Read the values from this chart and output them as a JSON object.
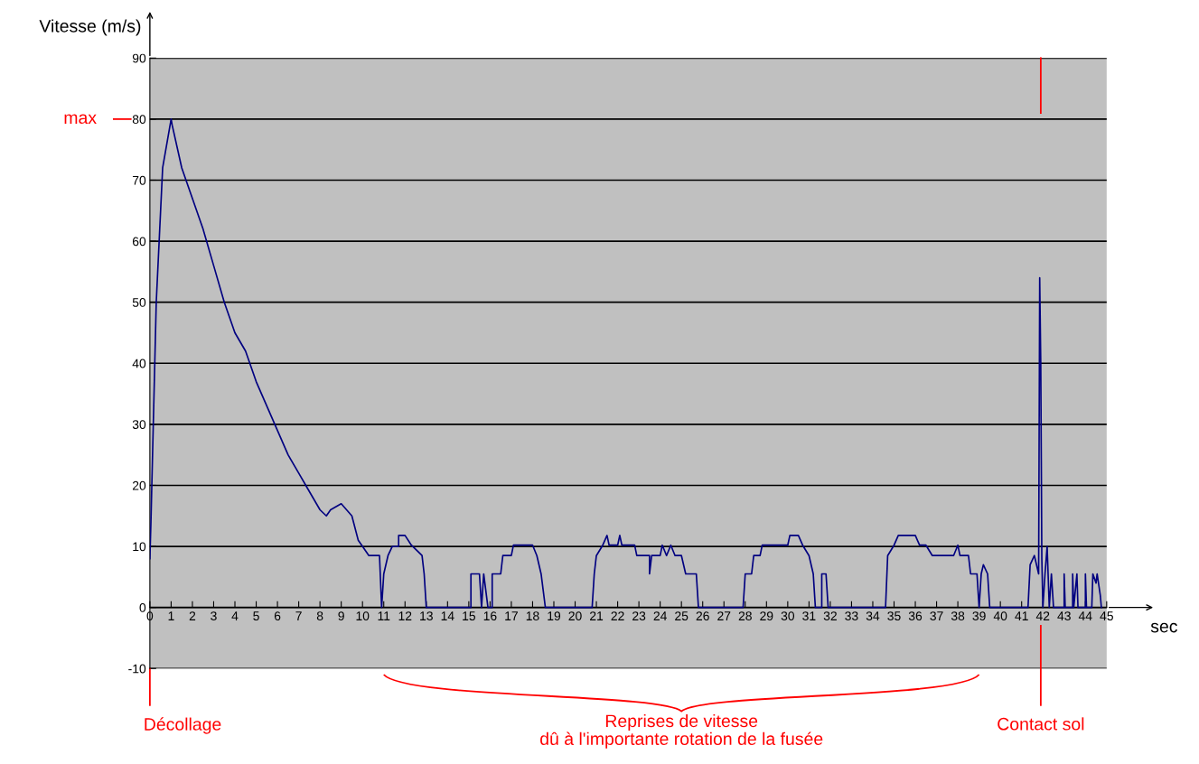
{
  "chart_data": {
    "type": "line",
    "ylabel": "Vitesse (m/s)",
    "xlabel": "sec",
    "xlim": [
      0,
      45
    ],
    "ylim": [
      -10,
      90
    ],
    "xticks": [
      0,
      1,
      2,
      3,
      4,
      5,
      6,
      7,
      8,
      9,
      10,
      11,
      12,
      13,
      14,
      15,
      16,
      17,
      18,
      19,
      20,
      21,
      22,
      23,
      24,
      25,
      26,
      27,
      28,
      29,
      30,
      31,
      32,
      33,
      34,
      35,
      36,
      37,
      38,
      39,
      40,
      41,
      42,
      43,
      44,
      45
    ],
    "yticks": [
      -10,
      0,
      10,
      20,
      30,
      40,
      50,
      60,
      70,
      80,
      90
    ],
    "grid": "y",
    "line_style": "solid",
    "marker": "none",
    "series": [
      {
        "color": "#000080",
        "x": [
          0,
          0.05,
          0.3,
          0.6,
          1.0,
          1.05,
          1.5,
          2,
          2.5,
          3,
          3.5,
          4,
          4.5,
          5,
          5.5,
          6,
          6.5,
          7,
          7.5,
          8,
          8.3,
          8.5,
          9,
          9.5,
          9.8,
          10,
          10.3,
          10.8,
          10.9,
          11,
          11.2,
          11.4,
          11.7,
          11.7,
          12,
          12.3,
          12.8,
          12.9,
          13,
          15.1,
          15.1,
          15.5,
          15.6,
          15.7,
          15.9,
          16.1,
          16.1,
          16.5,
          16.6,
          17,
          17.1,
          18,
          18.2,
          18.4,
          18.6,
          20.8,
          20.9,
          21,
          21.3,
          21.5,
          21.6,
          22,
          22.1,
          22.2,
          22.8,
          22.9,
          23.5,
          23.5,
          23.6,
          24,
          24.1,
          24.3,
          24.5,
          24.7,
          25,
          25.2,
          25.7,
          25.8,
          27.9,
          28,
          28.3,
          28.4,
          28.7,
          28.8,
          29.5,
          30,
          30.1,
          30.5,
          30.7,
          31,
          31.2,
          31.3,
          31.6,
          31.6,
          31.8,
          31.9,
          34.6,
          34.7,
          35,
          35.2,
          36,
          36.2,
          36.5,
          36.8,
          37.8,
          38,
          38.1,
          38.5,
          38.6,
          38.9,
          39,
          39.1,
          39.2,
          39.4,
          39.5,
          41.3,
          41.4,
          41.6,
          41.8,
          41.85,
          41.9,
          41.95,
          42,
          42.1,
          42.2,
          42.3,
          42.4,
          42.5,
          43,
          43,
          43.05,
          43.4,
          43.4,
          43.45,
          43.6,
          43.65,
          44,
          44,
          44.05,
          44.3,
          44.35,
          44.5,
          44.55,
          44.7,
          44.75
        ],
        "values": [
          8,
          14,
          50,
          72,
          80,
          79,
          72,
          67,
          62,
          56,
          50,
          45,
          42,
          37,
          33,
          29,
          25,
          22,
          19,
          16,
          15,
          16,
          17,
          15,
          11,
          10,
          8.5,
          8.5,
          0,
          5.5,
          8.5,
          10,
          10,
          11.8,
          11.8,
          10.2,
          8.5,
          5.5,
          0,
          0,
          5.5,
          5.5,
          0,
          5.5,
          0,
          0,
          5.5,
          5.5,
          8.5,
          8.5,
          10.2,
          10.2,
          8.5,
          5.5,
          0,
          0,
          5.5,
          8.5,
          10.2,
          11.8,
          10.2,
          10.2,
          11.8,
          10.2,
          10.2,
          8.5,
          8.5,
          5.5,
          8.5,
          8.5,
          10.2,
          8.5,
          10.2,
          8.5,
          8.5,
          5.5,
          5.5,
          0,
          0,
          5.5,
          5.5,
          8.5,
          8.5,
          10.2,
          10.2,
          10.2,
          11.8,
          11.8,
          10.2,
          8.5,
          5.5,
          0,
          0,
          5.5,
          5.5,
          0,
          0,
          8.5,
          10.2,
          11.8,
          11.8,
          10.2,
          10.2,
          8.5,
          8.5,
          10.2,
          8.5,
          8.5,
          5.5,
          5.5,
          0,
          5.5,
          7,
          5.5,
          0,
          0,
          7,
          8.5,
          5.5,
          54,
          40,
          8,
          0,
          5.5,
          10,
          0,
          5.5,
          0,
          0,
          5.5,
          0,
          0,
          5.5,
          0,
          5.5,
          0,
          0,
          5.5,
          0,
          0,
          5.5,
          4,
          5.5,
          2,
          0
        ]
      }
    ],
    "ref_lines": [
      {
        "axis": "x",
        "value": 41.9,
        "label": "Contact sol",
        "color": "#ff0000"
      }
    ],
    "annotations": [
      "max",
      "Décollage",
      "Reprises de vitesse\ndû à l'importante rotation de la fusée"
    ]
  }
}
